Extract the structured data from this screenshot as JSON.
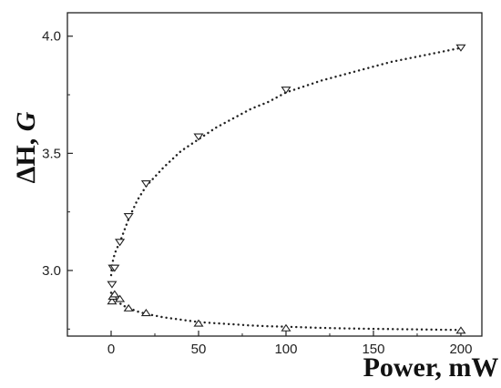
{
  "chart_data": {
    "type": "scatter",
    "xlabel": "Power, mW",
    "ylabel": {
      "main": "ΔH, ",
      "unit": "G"
    },
    "xlim": [
      -25,
      212
    ],
    "ylim": [
      2.72,
      4.1
    ],
    "xticks": [
      0,
      50,
      100,
      150,
      200
    ],
    "yticks": [
      3.0,
      3.5,
      4.0
    ],
    "xtick_labels": [
      "0",
      "50",
      "100",
      "150",
      "200"
    ],
    "ytick_labels": [
      "3.0",
      "3.5",
      "4.0"
    ],
    "grid": false,
    "series": [
      {
        "marker": "triangle-down",
        "x": [
          0.5,
          1,
          2,
          5,
          10,
          20,
          50,
          100,
          200
        ],
        "y": [
          2.94,
          3.01,
          3.01,
          3.12,
          3.23,
          3.37,
          3.57,
          3.77,
          3.95
        ],
        "fit": {
          "x": [
            0,
            0.2,
            0.5,
            1,
            2,
            3,
            5,
            7,
            10,
            15,
            20,
            30,
            40,
            50,
            60,
            70,
            80,
            90,
            100,
            120,
            140,
            160,
            180,
            200
          ],
          "y": [
            2.98,
            3.0,
            3.02,
            3.04,
            3.07,
            3.09,
            3.12,
            3.16,
            3.22,
            3.3,
            3.36,
            3.44,
            3.51,
            3.56,
            3.61,
            3.65,
            3.69,
            3.72,
            3.76,
            3.81,
            3.85,
            3.89,
            3.92,
            3.95
          ]
        }
      },
      {
        "marker": "triangle-up",
        "x": [
          0.5,
          1,
          2,
          5,
          10,
          20,
          50,
          100,
          200
        ],
        "y": [
          2.87,
          2.89,
          2.9,
          2.88,
          2.84,
          2.82,
          2.775,
          2.755,
          2.745
        ],
        "fit": {
          "x": [
            0,
            1,
            2,
            3,
            5,
            7,
            10,
            15,
            20,
            30,
            40,
            50,
            60,
            70,
            80,
            90,
            100,
            120,
            140,
            160,
            180,
            200
          ],
          "y": [
            2.905,
            2.895,
            2.885,
            2.875,
            2.86,
            2.85,
            2.84,
            2.825,
            2.815,
            2.8,
            2.79,
            2.78,
            2.775,
            2.77,
            2.765,
            2.762,
            2.76,
            2.755,
            2.752,
            2.75,
            2.748,
            2.746
          ]
        }
      }
    ]
  }
}
